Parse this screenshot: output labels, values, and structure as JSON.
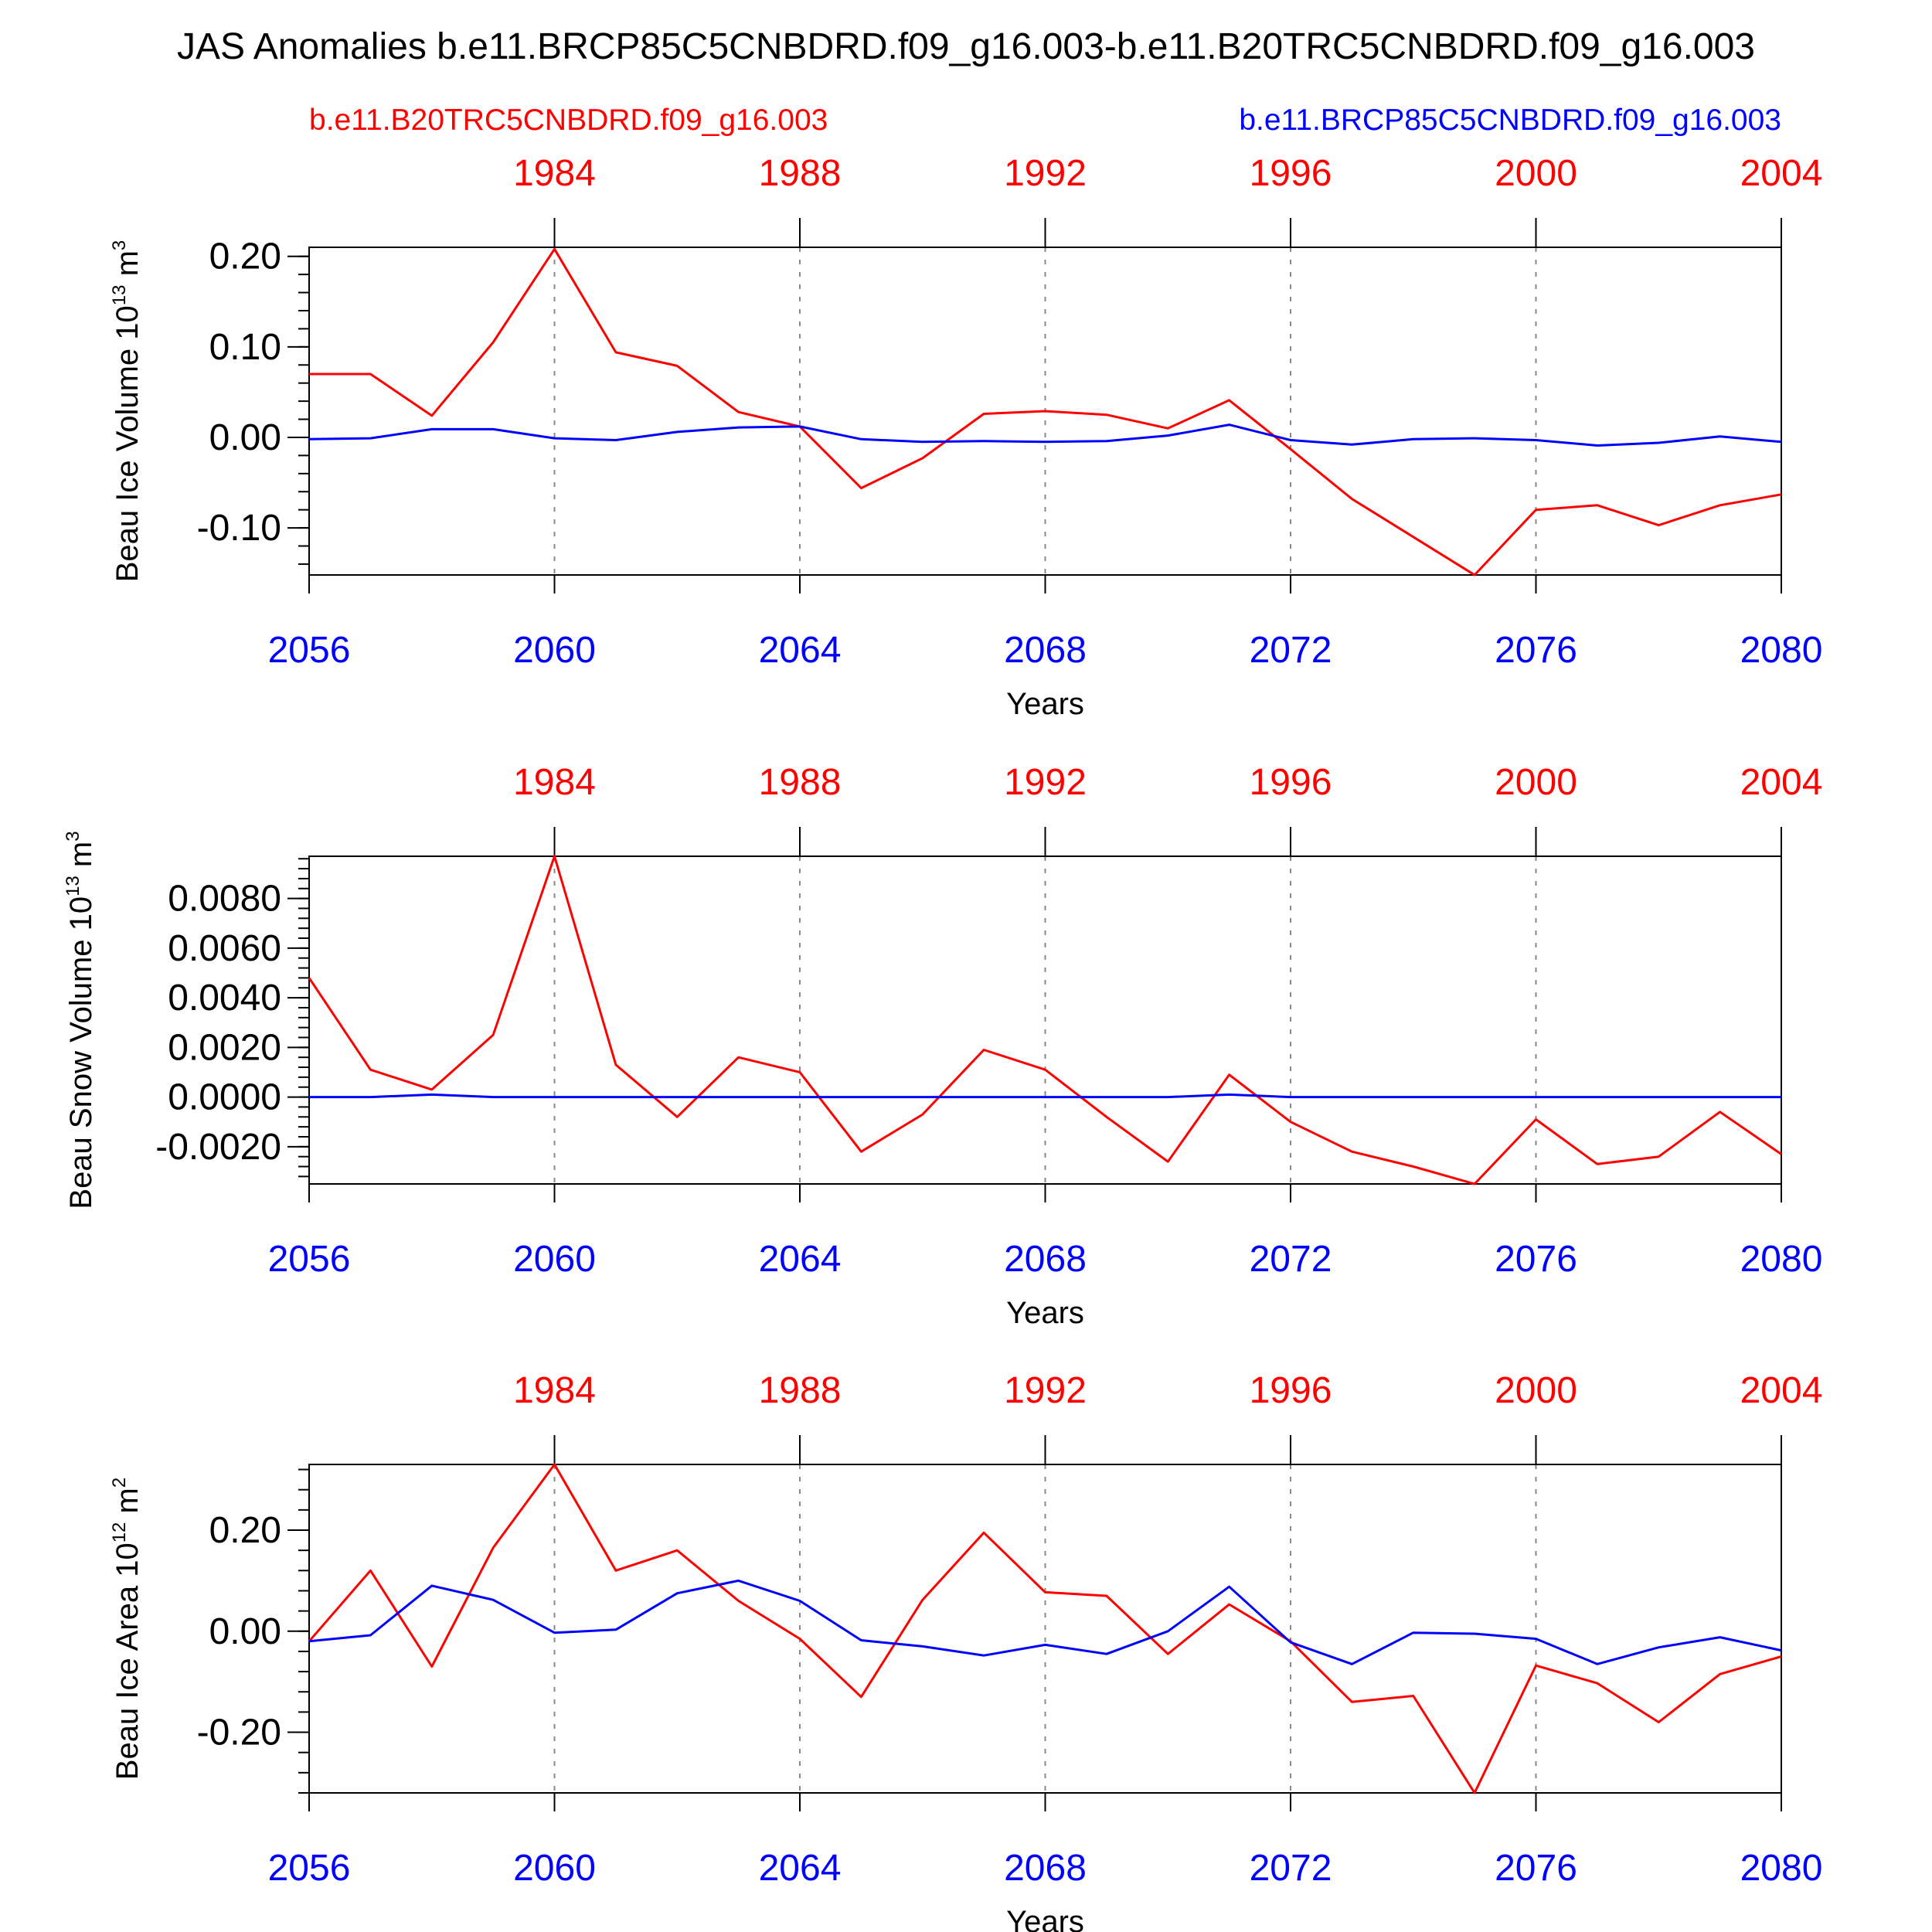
{
  "figure": {
    "title": "JAS Anomalies b.e11.BRCP85C5CNBDRD.f09_g16.003-b.e11.B20TRC5CNBDRD.f09_g16.003",
    "legend_left": "b.e11.B20TRC5CNBDRD.f09_g16.003",
    "legend_right": "b.e11.BRCP85C5CNBDRD.f09_g16.003",
    "colors": {
      "red": "#ff0000",
      "blue": "#0000ff",
      "grid": "#888888"
    }
  },
  "chart_data": [
    {
      "type": "line",
      "ylabel": "Beau Ice Volume 10",
      "ylabel_exp": "13",
      "ylabel_unit": " m",
      "ylabel_unit_exp": "3",
      "xlabel": "Years",
      "xlim": [
        2056,
        2080
      ],
      "ylim": [
        -0.152,
        0.21
      ],
      "yticks": [
        -0.1,
        0.0,
        0.1,
        0.2
      ],
      "ytick_labels": [
        "-0.10",
        "0.00",
        "0.10",
        "0.20"
      ],
      "yminor_step": 0.02,
      "grid": true,
      "bottom_axis": {
        "ticks": [
          2056,
          2060,
          2064,
          2068,
          2072,
          2076,
          2080
        ],
        "labels": [
          "2056",
          "2060",
          "2064",
          "2068",
          "2072",
          "2076",
          "2080"
        ]
      },
      "top_axis": {
        "ticks": [
          1984,
          1988,
          1992,
          1996,
          2000,
          2004
        ],
        "labels": [
          "1984",
          "1988",
          "1992",
          "1996",
          "2000",
          "2004"
        ]
      },
      "x": [
        2056,
        2057,
        2058,
        2059,
        2060,
        2061,
        2062,
        2063,
        2064,
        2065,
        2066,
        2067,
        2068,
        2069,
        2070,
        2071,
        2072,
        2073,
        2074,
        2075,
        2076,
        2077,
        2078,
        2079,
        2080
      ],
      "series": [
        {
          "name": "b.e11.B20TRC5CNBDRD.f09_g16.003",
          "color": "red",
          "values": [
            0.07,
            0.07,
            0.024,
            0.105,
            0.208,
            0.094,
            0.079,
            0.028,
            0.012,
            -0.056,
            -0.023,
            0.026,
            0.029,
            0.025,
            0.01,
            0.041,
            -0.013,
            -0.068,
            -0.11,
            -0.152,
            -0.08,
            -0.075,
            -0.097,
            -0.075,
            -0.063
          ]
        },
        {
          "name": "b.e11.BRCP85C5CNBDRD.f09_g16.003",
          "color": "blue",
          "values": [
            -0.002,
            -0.001,
            0.009,
            0.009,
            -0.001,
            -0.003,
            0.006,
            0.011,
            0.012,
            -0.002,
            -0.005,
            -0.004,
            -0.005,
            -0.004,
            0.002,
            0.014,
            -0.003,
            -0.008,
            -0.002,
            -0.001,
            -0.003,
            -0.009,
            -0.006,
            0.001,
            -0.005
          ]
        }
      ]
    },
    {
      "type": "line",
      "ylabel": "Beau Snow Volume 10",
      "ylabel_exp": "13",
      "ylabel_unit": " m",
      "ylabel_unit_exp": "3",
      "xlabel": "Years",
      "xlim": [
        2056,
        2080
      ],
      "ylim": [
        -0.0035,
        0.0097
      ],
      "yticks": [
        -0.002,
        0.0,
        0.002,
        0.004,
        0.006,
        0.008
      ],
      "ytick_labels": [
        "-0.0020",
        "0.0000",
        "0.0020",
        "0.0040",
        "0.0060",
        "0.0080"
      ],
      "yminor_step": 0.0004,
      "grid": true,
      "bottom_axis": {
        "ticks": [
          2056,
          2060,
          2064,
          2068,
          2072,
          2076,
          2080
        ],
        "labels": [
          "2056",
          "2060",
          "2064",
          "2068",
          "2072",
          "2076",
          "2080"
        ]
      },
      "top_axis": {
        "ticks": [
          1984,
          1988,
          1992,
          1996,
          2000,
          2004
        ],
        "labels": [
          "1984",
          "1988",
          "1992",
          "1996",
          "2000",
          "2004"
        ]
      },
      "x": [
        2056,
        2057,
        2058,
        2059,
        2060,
        2061,
        2062,
        2063,
        2064,
        2065,
        2066,
        2067,
        2068,
        2069,
        2070,
        2071,
        2072,
        2073,
        2074,
        2075,
        2076,
        2077,
        2078,
        2079,
        2080
      ],
      "series": [
        {
          "name": "b.e11.B20TRC5CNBDRD.f09_g16.003",
          "color": "red",
          "values": [
            0.0048,
            0.0011,
            0.0003,
            0.0025,
            0.0097,
            0.0013,
            -0.0008,
            0.0016,
            0.001,
            -0.0022,
            -0.0007,
            0.0019,
            0.0011,
            -0.0008,
            -0.0026,
            0.0009,
            -0.001,
            -0.0022,
            -0.0028,
            -0.0035,
            -0.0009,
            -0.0027,
            -0.0024,
            -0.0006,
            -0.0023
          ]
        },
        {
          "name": "b.e11.BRCP85C5CNBDRD.f09_g16.003",
          "color": "blue",
          "values": [
            0.0,
            0.0,
            0.0001,
            0.0,
            0.0,
            0.0,
            0.0,
            0.0,
            0.0,
            0.0,
            0.0,
            0.0,
            0.0,
            0.0,
            0.0,
            0.0001,
            0.0,
            0.0,
            0.0,
            0.0,
            0.0,
            0.0,
            0.0,
            0.0,
            0.0
          ]
        }
      ]
    },
    {
      "type": "line",
      "ylabel": "Beau Ice Area 10",
      "ylabel_exp": "12",
      "ylabel_unit": " m",
      "ylabel_unit_exp": "2",
      "xlabel": "Years",
      "xlim": [
        2056,
        2080
      ],
      "ylim": [
        -0.32,
        0.33
      ],
      "yticks": [
        -0.2,
        0.0,
        0.2
      ],
      "ytick_labels": [
        "-0.20",
        "0.00",
        "0.20"
      ],
      "yminor_step": 0.04,
      "grid": true,
      "bottom_axis": {
        "ticks": [
          2056,
          2060,
          2064,
          2068,
          2072,
          2076,
          2080
        ],
        "labels": [
          "2056",
          "2060",
          "2064",
          "2068",
          "2072",
          "2076",
          "2080"
        ]
      },
      "top_axis": {
        "ticks": [
          1984,
          1988,
          1992,
          1996,
          2000,
          2004
        ],
        "labels": [
          "1984",
          "1988",
          "1992",
          "1996",
          "2000",
          "2004"
        ]
      },
      "x": [
        2056,
        2057,
        2058,
        2059,
        2060,
        2061,
        2062,
        2063,
        2064,
        2065,
        2066,
        2067,
        2068,
        2069,
        2070,
        2071,
        2072,
        2073,
        2074,
        2075,
        2076,
        2077,
        2078,
        2079,
        2080
      ],
      "series": [
        {
          "name": "b.e11.B20TRC5CNBDRD.f09_g16.003",
          "color": "red",
          "values": [
            -0.02,
            0.12,
            -0.07,
            0.165,
            0.33,
            0.12,
            0.16,
            0.06,
            -0.015,
            -0.13,
            0.062,
            0.195,
            0.077,
            0.07,
            -0.045,
            0.053,
            -0.02,
            -0.14,
            -0.128,
            -0.32,
            -0.068,
            -0.103,
            -0.18,
            -0.085,
            -0.05
          ]
        },
        {
          "name": "b.e11.BRCP85C5CNBDRD.f09_g16.003",
          "color": "blue",
          "values": [
            -0.02,
            -0.008,
            0.09,
            0.062,
            -0.003,
            0.003,
            0.075,
            0.1,
            0.06,
            -0.018,
            -0.03,
            -0.048,
            -0.027,
            -0.045,
            0.0,
            0.088,
            -0.022,
            -0.065,
            -0.003,
            -0.005,
            -0.015,
            -0.065,
            -0.032,
            -0.012,
            -0.038
          ]
        }
      ]
    }
  ]
}
